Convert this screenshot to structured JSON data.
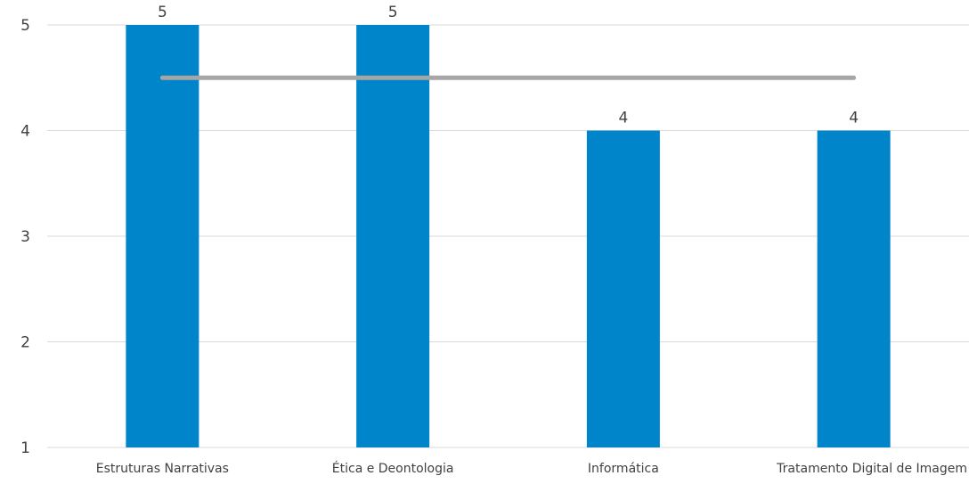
{
  "chart_data": {
    "type": "bar",
    "categories": [
      "Estruturas Narrativas",
      "Ética e Deontologia",
      "Informática",
      "Tratamento Digital de Imagem"
    ],
    "series": [
      {
        "values": [
          5,
          5,
          4,
          4
        ],
        "color": "#0085CA",
        "data_labels": [
          "5",
          "5",
          "4",
          "4"
        ]
      },
      {
        "type": "line",
        "values": [
          4.5,
          4.5,
          4.5,
          4.5
        ],
        "color": "#A6A6A6"
      }
    ],
    "ylim": [
      1,
      5
    ],
    "yticks": [
      "1",
      "2",
      "3",
      "4",
      "5"
    ],
    "grid": true,
    "title": "",
    "xlabel": "",
    "ylabel": ""
  }
}
